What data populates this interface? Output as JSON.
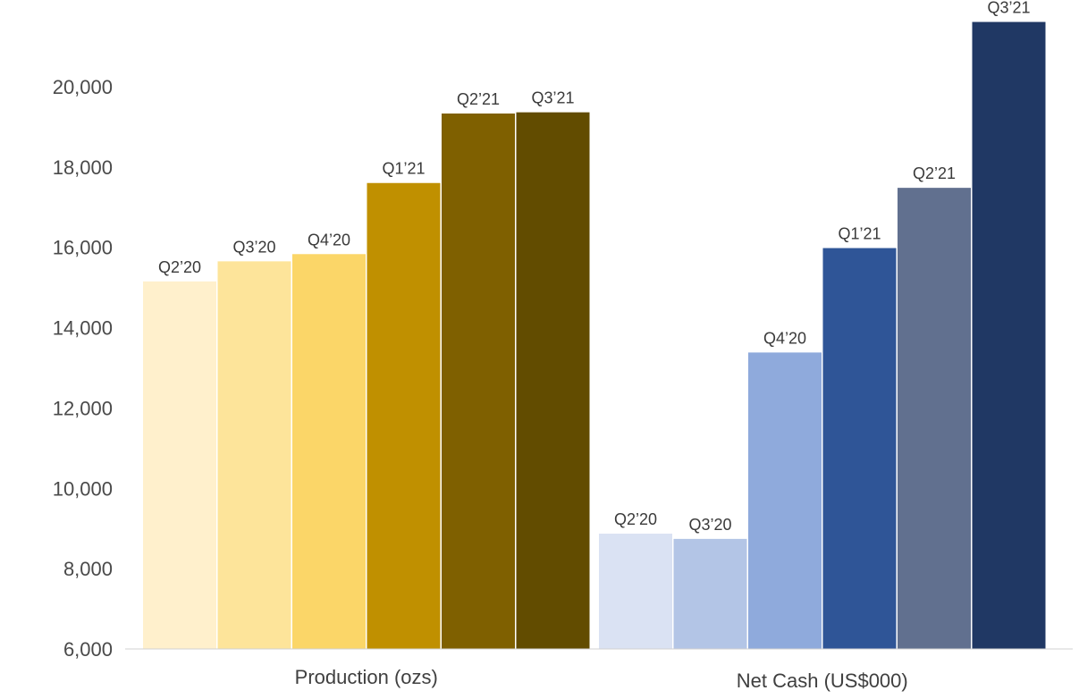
{
  "chart_data": {
    "type": "bar",
    "title": "",
    "xlabel": "",
    "ylabel": "",
    "ylim": [
      6000,
      21600
    ],
    "yticks": [
      6000,
      8000,
      10000,
      12000,
      14000,
      16000,
      18000,
      20000
    ],
    "ytick_labels": [
      "6,000",
      "8,000",
      "10,000",
      "12,000",
      "14,000",
      "16,000",
      "18,000",
      "20,000"
    ],
    "grid": false,
    "legend": "none",
    "groups": [
      {
        "name": "Production (ozs)",
        "bars": [
          {
            "label": "Q2’20",
            "value": 15150,
            "color": "#FFF0CC"
          },
          {
            "label": "Q3’20",
            "value": 15650,
            "color": "#FDE49A"
          },
          {
            "label": "Q4’20",
            "value": 15830,
            "color": "#FBD668"
          },
          {
            "label": "Q1’21",
            "value": 17600,
            "color": "#C09000"
          },
          {
            "label": "Q2’21",
            "value": 19330,
            "color": "#7F6000"
          },
          {
            "label": "Q3’21",
            "value": 19360,
            "color": "#624C00"
          }
        ]
      },
      {
        "name": "Net Cash (US$000)",
        "bars": [
          {
            "label": "Q2’20",
            "value": 8870,
            "color": "#DAE2F3"
          },
          {
            "label": "Q3’20",
            "value": 8740,
            "color": "#B3C5E6"
          },
          {
            "label": "Q4’20",
            "value": 13380,
            "color": "#8FAADC"
          },
          {
            "label": "Q1’21",
            "value": 15980,
            "color": "#2F5597"
          },
          {
            "label": "Q2’21",
            "value": 17480,
            "color": "#61708F"
          },
          {
            "label": "Q3’21",
            "value": 21610,
            "color": "#203864"
          }
        ]
      }
    ]
  }
}
